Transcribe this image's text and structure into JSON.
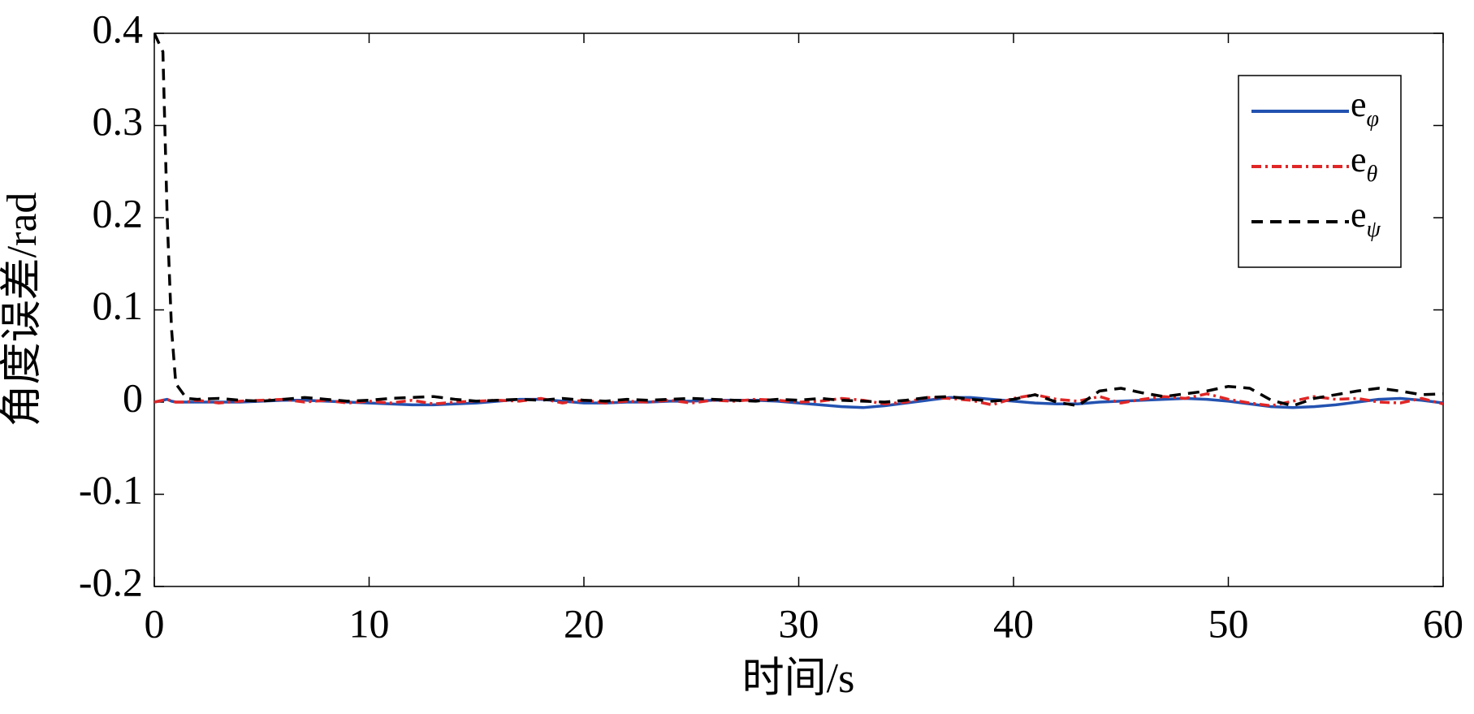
{
  "chart_data": {
    "type": "line",
    "xlabel": "时间/s",
    "ylabel": "角度误差/rad",
    "xlim": [
      0,
      60
    ],
    "ylim": [
      -0.2,
      0.4
    ],
    "xticks": [
      0,
      10,
      20,
      30,
      40,
      50,
      60
    ],
    "yticks": [
      -0.2,
      -0.1,
      0,
      0.1,
      0.2,
      0.3,
      0.4
    ],
    "legend": "upper right",
    "grid": false,
    "x": [
      0,
      0.4,
      0.6,
      0.8,
      1,
      1.5,
      2,
      3,
      4,
      5,
      6,
      7,
      8,
      9,
      10,
      11,
      12,
      13,
      14,
      15,
      16,
      17,
      18,
      19,
      20,
      21,
      22,
      23,
      24,
      25,
      26,
      27,
      28,
      29,
      30,
      31,
      32,
      33,
      34,
      35,
      36,
      37,
      38,
      39,
      40,
      41,
      42,
      43,
      44,
      45,
      46,
      47,
      48,
      49,
      50,
      51,
      52,
      53,
      54,
      55,
      56,
      57,
      58,
      59,
      60
    ],
    "series": [
      {
        "name": "eφ",
        "color": "#2352b0",
        "dash": "solid",
        "values": [
          0,
          0.002,
          0.003,
          0.001,
          0,
          0,
          0,
          0,
          0,
          0.001,
          0.002,
          0.002,
          0.001,
          0,
          -0.001,
          -0.002,
          -0.003,
          -0.003,
          -0.002,
          -0.001,
          0.001,
          0.003,
          0.003,
          0.001,
          -0.001,
          -0.001,
          0,
          0,
          0.001,
          0.001,
          0.002,
          0.002,
          0.002,
          0.001,
          -0.001,
          -0.003,
          -0.005,
          -0.006,
          -0.004,
          -0.001,
          0.002,
          0.005,
          0.005,
          0.003,
          0.001,
          -0.001,
          -0.002,
          -0.002,
          0,
          0.001,
          0.002,
          0.003,
          0.004,
          0.003,
          0.001,
          -0.002,
          -0.005,
          -0.006,
          -0.005,
          -0.003,
          0,
          0.003,
          0.004,
          0.002,
          -0.001
        ]
      },
      {
        "name": "eθ",
        "color": "#e02626",
        "dash": "dashdot",
        "values": [
          0,
          0.002,
          0.003,
          0.001,
          0,
          0,
          0.002,
          -0.001,
          0.001,
          0.002,
          0.003,
          0,
          0.002,
          -0.001,
          0.001,
          -0.001,
          0.002,
          -0.002,
          0,
          0.001,
          0.002,
          0.001,
          0.004,
          -0.001,
          0.002,
          -0.001,
          0.001,
          0,
          0.002,
          -0.001,
          0.002,
          0.001,
          0.003,
          0.002,
          0,
          0.001,
          0.004,
          0.002,
          -0.002,
          0,
          0.005,
          0.004,
          0.002,
          -0.003,
          0.004,
          0.008,
          0.003,
          0.001,
          0.006,
          -0.001,
          0.003,
          0.006,
          0.004,
          0.009,
          0.003,
          -0.001,
          -0.004,
          0.001,
          0.006,
          0.003,
          0.004,
          0,
          -0.001,
          0.004,
          -0.002
        ]
      },
      {
        "name": "eψ",
        "color": "#000000",
        "dash": "dashed",
        "values": [
          0.4,
          0.38,
          0.2,
          0.08,
          0.02,
          0.004,
          0.003,
          0.004,
          0.002,
          0.001,
          0.003,
          0.005,
          0.003,
          0.001,
          0.002,
          0.004,
          0.005,
          0.006,
          0.003,
          0.001,
          0.002,
          0.003,
          0.002,
          0.004,
          0.002,
          0.001,
          0.003,
          0.002,
          0.003,
          0.004,
          0.003,
          0.002,
          0.001,
          0.003,
          0.002,
          0.004,
          0.002,
          0.001,
          0,
          0.002,
          0.005,
          0.006,
          0.003,
          0.001,
          0.003,
          0.008,
          0,
          -0.004,
          0.012,
          0.015,
          0.01,
          0.006,
          0.009,
          0.012,
          0.017,
          0.015,
          0.002,
          -0.004,
          0.004,
          0.008,
          0.012,
          0.015,
          0.012,
          0.008,
          0.009
        ]
      }
    ]
  }
}
